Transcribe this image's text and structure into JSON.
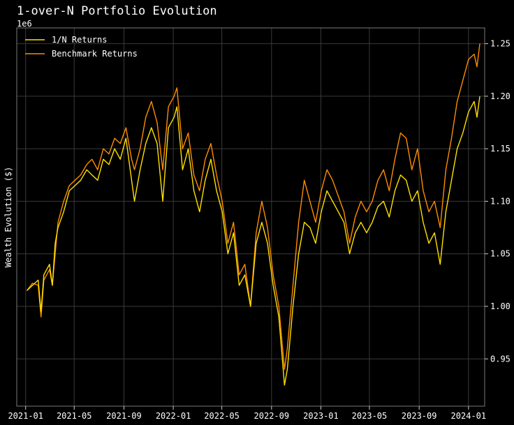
{
  "chart_data": {
    "type": "line",
    "title": "1-over-N Portfolio Evolution",
    "xlabel": "",
    "ylabel": "Wealth Evolution ($)",
    "y_offset_text": "1e6",
    "x_tick_labels": [
      "2021-01",
      "2021-05",
      "2021-09",
      "2022-01",
      "2022-05",
      "2022-09",
      "2023-01",
      "2023-05",
      "2023-09",
      "2024-01"
    ],
    "y_tick_labels": [
      "0.95",
      "1.00",
      "1.05",
      "1.10",
      "1.15",
      "1.20",
      "1.25"
    ],
    "ylim": [
      905000,
      1265000
    ],
    "xlim": [
      "2020-12-10",
      "2024-02-10"
    ],
    "grid": true,
    "legend_position": "top-left",
    "series": [
      {
        "name": "1/N Returns",
        "color": "#ffe000",
        "points": [
          [
            "2021-01-04",
            1015000
          ],
          [
            "2021-01-18",
            1020000
          ],
          [
            "2021-02-01",
            1025000
          ],
          [
            "2021-02-08",
            995000
          ],
          [
            "2021-02-15",
            1030000
          ],
          [
            "2021-03-01",
            1040000
          ],
          [
            "2021-03-08",
            1020000
          ],
          [
            "2021-03-15",
            1060000
          ],
          [
            "2021-03-22",
            1075000
          ],
          [
            "2021-04-05",
            1090000
          ],
          [
            "2021-04-19",
            1110000
          ],
          [
            "2021-05-03",
            1115000
          ],
          [
            "2021-05-17",
            1120000
          ],
          [
            "2021-06-01",
            1130000
          ],
          [
            "2021-06-14",
            1125000
          ],
          [
            "2021-06-28",
            1120000
          ],
          [
            "2021-07-12",
            1140000
          ],
          [
            "2021-07-26",
            1135000
          ],
          [
            "2021-08-09",
            1150000
          ],
          [
            "2021-08-23",
            1140000
          ],
          [
            "2021-09-06",
            1160000
          ],
          [
            "2021-09-20",
            1120000
          ],
          [
            "2021-09-27",
            1100000
          ],
          [
            "2021-10-11",
            1130000
          ],
          [
            "2021-10-25",
            1155000
          ],
          [
            "2021-11-08",
            1170000
          ],
          [
            "2021-11-22",
            1155000
          ],
          [
            "2021-12-06",
            1100000
          ],
          [
            "2021-12-20",
            1170000
          ],
          [
            "2022-01-03",
            1180000
          ],
          [
            "2022-01-10",
            1190000
          ],
          [
            "2022-01-24",
            1130000
          ],
          [
            "2022-02-07",
            1150000
          ],
          [
            "2022-02-21",
            1110000
          ],
          [
            "2022-03-07",
            1090000
          ],
          [
            "2022-03-21",
            1120000
          ],
          [
            "2022-04-04",
            1140000
          ],
          [
            "2022-04-18",
            1110000
          ],
          [
            "2022-05-02",
            1090000
          ],
          [
            "2022-05-16",
            1050000
          ],
          [
            "2022-05-30",
            1070000
          ],
          [
            "2022-06-13",
            1020000
          ],
          [
            "2022-06-27",
            1030000
          ],
          [
            "2022-07-11",
            1000000
          ],
          [
            "2022-07-25",
            1060000
          ],
          [
            "2022-08-08",
            1080000
          ],
          [
            "2022-08-22",
            1060000
          ],
          [
            "2022-09-05",
            1020000
          ],
          [
            "2022-09-19",
            990000
          ],
          [
            "2022-10-03",
            925000
          ],
          [
            "2022-10-10",
            940000
          ],
          [
            "2022-10-24",
            1000000
          ],
          [
            "2022-11-07",
            1050000
          ],
          [
            "2022-11-21",
            1080000
          ],
          [
            "2022-12-05",
            1075000
          ],
          [
            "2022-12-19",
            1060000
          ],
          [
            "2023-01-02",
            1090000
          ],
          [
            "2023-01-16",
            1110000
          ],
          [
            "2023-01-30",
            1100000
          ],
          [
            "2023-02-13",
            1090000
          ],
          [
            "2023-02-27",
            1080000
          ],
          [
            "2023-03-13",
            1050000
          ],
          [
            "2023-03-27",
            1070000
          ],
          [
            "2023-04-10",
            1080000
          ],
          [
            "2023-04-24",
            1070000
          ],
          [
            "2023-05-08",
            1080000
          ],
          [
            "2023-05-22",
            1095000
          ],
          [
            "2023-06-05",
            1100000
          ],
          [
            "2023-06-19",
            1085000
          ],
          [
            "2023-07-03",
            1110000
          ],
          [
            "2023-07-17",
            1125000
          ],
          [
            "2023-07-31",
            1120000
          ],
          [
            "2023-08-14",
            1100000
          ],
          [
            "2023-08-28",
            1110000
          ],
          [
            "2023-09-11",
            1080000
          ],
          [
            "2023-09-25",
            1060000
          ],
          [
            "2023-10-09",
            1070000
          ],
          [
            "2023-10-23",
            1040000
          ],
          [
            "2023-11-06",
            1090000
          ],
          [
            "2023-11-20",
            1120000
          ],
          [
            "2023-12-04",
            1150000
          ],
          [
            "2023-12-18",
            1165000
          ],
          [
            "2024-01-01",
            1185000
          ],
          [
            "2024-01-15",
            1195000
          ],
          [
            "2024-01-22",
            1180000
          ],
          [
            "2024-01-29",
            1200000
          ]
        ]
      },
      {
        "name": "Benchmark Returns",
        "color": "#ff8c00",
        "points": [
          [
            "2021-01-04",
            1015000
          ],
          [
            "2021-01-18",
            1022000
          ],
          [
            "2021-02-01",
            1020000
          ],
          [
            "2021-02-08",
            990000
          ],
          [
            "2021-02-15",
            1025000
          ],
          [
            "2021-03-01",
            1035000
          ],
          [
            "2021-03-08",
            1020000
          ],
          [
            "2021-03-15",
            1050000
          ],
          [
            "2021-03-22",
            1080000
          ],
          [
            "2021-04-05",
            1100000
          ],
          [
            "2021-04-19",
            1115000
          ],
          [
            "2021-05-03",
            1120000
          ],
          [
            "2021-05-17",
            1125000
          ],
          [
            "2021-06-01",
            1135000
          ],
          [
            "2021-06-14",
            1140000
          ],
          [
            "2021-06-28",
            1130000
          ],
          [
            "2021-07-12",
            1150000
          ],
          [
            "2021-07-26",
            1145000
          ],
          [
            "2021-08-09",
            1160000
          ],
          [
            "2021-08-23",
            1155000
          ],
          [
            "2021-09-06",
            1170000
          ],
          [
            "2021-09-20",
            1140000
          ],
          [
            "2021-09-27",
            1130000
          ],
          [
            "2021-10-11",
            1150000
          ],
          [
            "2021-10-25",
            1180000
          ],
          [
            "2021-11-08",
            1195000
          ],
          [
            "2021-11-22",
            1175000
          ],
          [
            "2021-12-06",
            1130000
          ],
          [
            "2021-12-20",
            1190000
          ],
          [
            "2022-01-03",
            1200000
          ],
          [
            "2022-01-10",
            1208000
          ],
          [
            "2022-01-24",
            1150000
          ],
          [
            "2022-02-07",
            1165000
          ],
          [
            "2022-02-21",
            1125000
          ],
          [
            "2022-03-07",
            1110000
          ],
          [
            "2022-03-21",
            1140000
          ],
          [
            "2022-04-04",
            1155000
          ],
          [
            "2022-04-18",
            1125000
          ],
          [
            "2022-05-02",
            1100000
          ],
          [
            "2022-05-16",
            1060000
          ],
          [
            "2022-05-30",
            1080000
          ],
          [
            "2022-06-13",
            1030000
          ],
          [
            "2022-06-27",
            1040000
          ],
          [
            "2022-07-11",
            1000000
          ],
          [
            "2022-07-25",
            1070000
          ],
          [
            "2022-08-08",
            1100000
          ],
          [
            "2022-08-22",
            1075000
          ],
          [
            "2022-09-05",
            1030000
          ],
          [
            "2022-09-19",
            1000000
          ],
          [
            "2022-10-03",
            940000
          ],
          [
            "2022-10-10",
            960000
          ],
          [
            "2022-10-24",
            1020000
          ],
          [
            "2022-11-07",
            1080000
          ],
          [
            "2022-11-21",
            1120000
          ],
          [
            "2022-12-05",
            1100000
          ],
          [
            "2022-12-19",
            1080000
          ],
          [
            "2023-01-02",
            1110000
          ],
          [
            "2023-01-16",
            1130000
          ],
          [
            "2023-01-30",
            1120000
          ],
          [
            "2023-02-13",
            1105000
          ],
          [
            "2023-02-27",
            1090000
          ],
          [
            "2023-03-13",
            1060000
          ],
          [
            "2023-03-27",
            1085000
          ],
          [
            "2023-04-10",
            1100000
          ],
          [
            "2023-04-24",
            1090000
          ],
          [
            "2023-05-08",
            1100000
          ],
          [
            "2023-05-22",
            1120000
          ],
          [
            "2023-06-05",
            1130000
          ],
          [
            "2023-06-19",
            1110000
          ],
          [
            "2023-07-03",
            1140000
          ],
          [
            "2023-07-17",
            1165000
          ],
          [
            "2023-07-31",
            1160000
          ],
          [
            "2023-08-14",
            1130000
          ],
          [
            "2023-08-28",
            1150000
          ],
          [
            "2023-09-11",
            1110000
          ],
          [
            "2023-09-25",
            1090000
          ],
          [
            "2023-10-09",
            1100000
          ],
          [
            "2023-10-23",
            1075000
          ],
          [
            "2023-11-06",
            1130000
          ],
          [
            "2023-11-20",
            1160000
          ],
          [
            "2023-12-04",
            1195000
          ],
          [
            "2023-12-18",
            1215000
          ],
          [
            "2024-01-01",
            1235000
          ],
          [
            "2024-01-15",
            1240000
          ],
          [
            "2024-01-22",
            1228000
          ],
          [
            "2024-01-29",
            1250000
          ]
        ]
      }
    ]
  }
}
